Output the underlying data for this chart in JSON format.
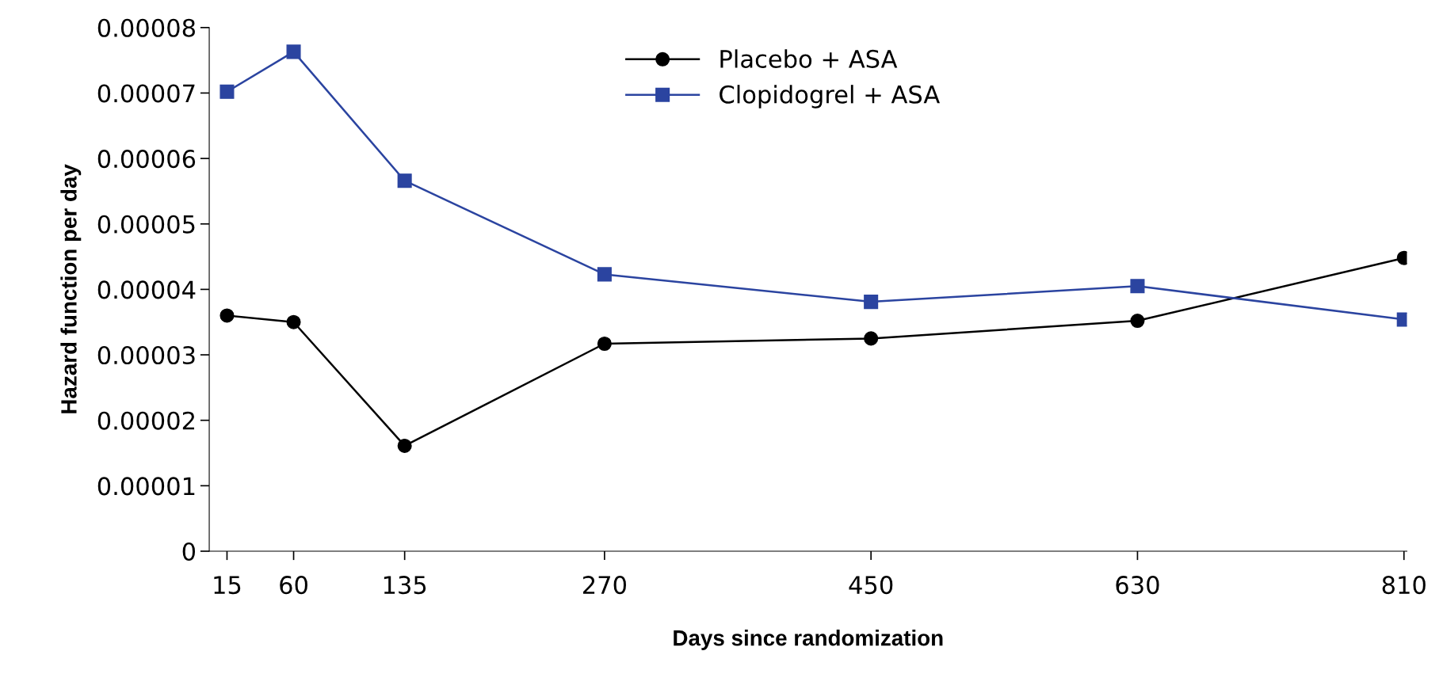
{
  "chart_data": {
    "type": "line",
    "xlabel": "Days since randomization",
    "ylabel": "Hazard function per day",
    "x": [
      15,
      60,
      135,
      270,
      450,
      630,
      810
    ],
    "series": [
      {
        "name": "Placebo + ASA",
        "color": "#000000",
        "marker": "circle",
        "values": [
          3.6e-05,
          3.5e-05,
          1.61e-05,
          3.17e-05,
          3.25e-05,
          3.52e-05,
          4.48e-05
        ]
      },
      {
        "name": "Clopidogrel + ASA",
        "color": "#2b44a0",
        "marker": "square",
        "values": [
          7.02e-05,
          7.63e-05,
          5.66e-05,
          4.23e-05,
          3.81e-05,
          4.05e-05,
          3.54e-05
        ]
      }
    ],
    "xlim": [
      3,
      812
    ],
    "xticks": [
      15,
      60,
      135,
      270,
      450,
      630,
      810
    ],
    "ylim": [
      0,
      8e-05
    ],
    "yticks": [
      0,
      {
        "value": 1e-05,
        "label": "0.00001"
      },
      {
        "value": 2e-05,
        "label": "0.00002"
      },
      {
        "value": 3e-05,
        "label": "0.00003"
      },
      {
        "value": 4e-05,
        "label": "0.00004"
      },
      {
        "value": 5e-05,
        "label": "0.00005"
      },
      {
        "value": 6e-05,
        "label": "0.00006"
      },
      {
        "value": 7e-05,
        "label": "0.00007"
      },
      {
        "value": 8e-05,
        "label": "0.00008"
      }
    ],
    "grid": false,
    "legend": "top",
    "line_style": "solid"
  }
}
